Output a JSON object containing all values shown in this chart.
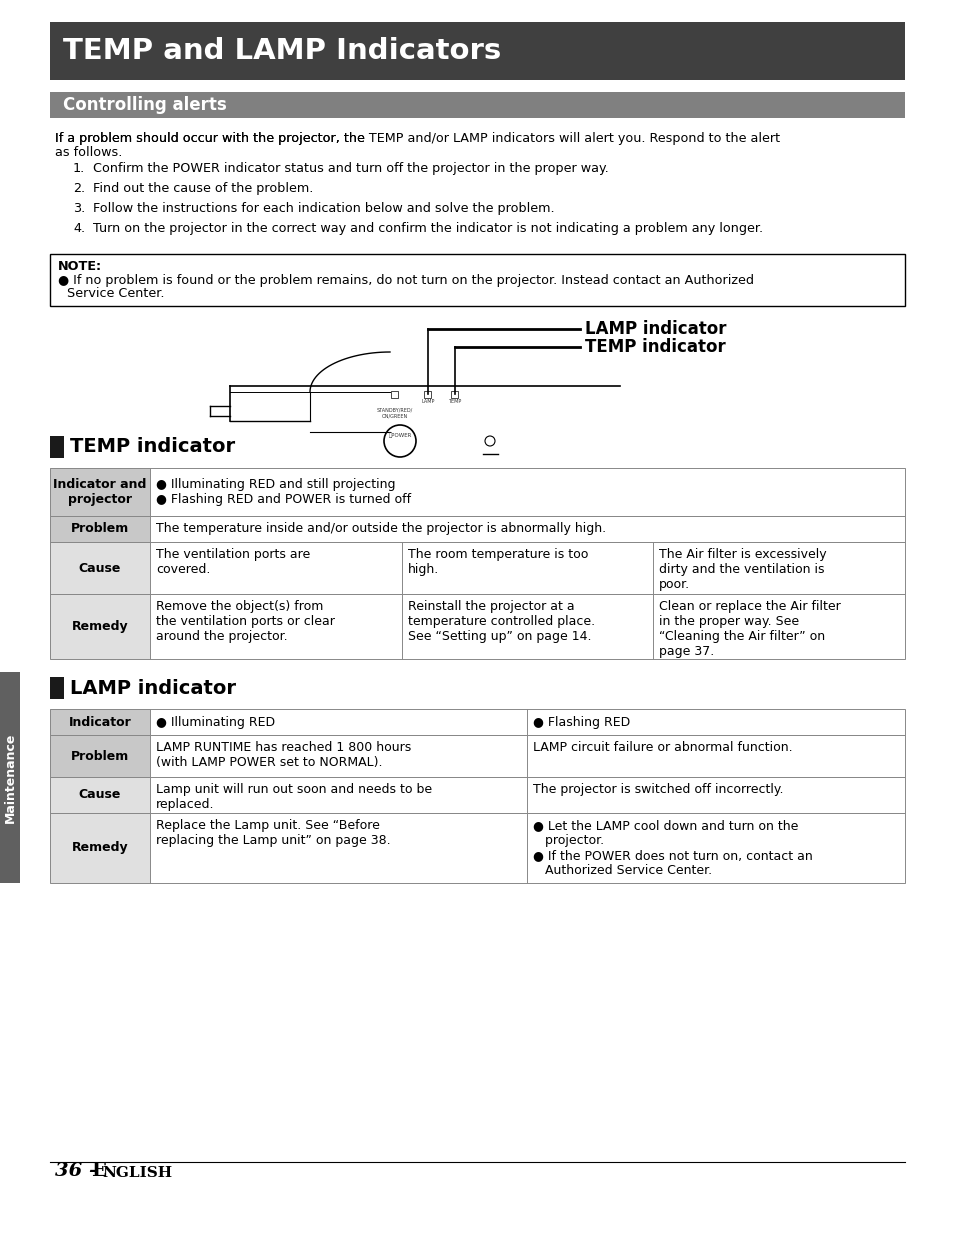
{
  "title": "TEMP and LAMP Indicators",
  "title_bg": "#404040",
  "title_color": "#ffffff",
  "section1_title": "Controlling alerts",
  "section1_bg": "#808080",
  "section1_color": "#ffffff",
  "list_items": [
    "Confirm the POWER indicator status and turn off the projector in the proper way.",
    "Find out the cause of the problem.",
    "Follow the instructions for each indication below and solve the problem.",
    "Turn on the projector in the correct way and confirm the indicator is not indicating a problem any longer."
  ],
  "note_title": "NOTE:",
  "note_line1": "If no problem is found or the problem remains, do not turn on the projector. Instead contact an Authorized",
  "note_line2": "Service Center.",
  "lamp_indicator_label": "LAMP indicator",
  "temp_indicator_label": "TEMP indicator",
  "temp_section_title": "TEMP indicator",
  "temp_table": {
    "row1_label": "Indicator and\nprojector",
    "row1_col1_l1": "● Illuminating RED and still projecting",
    "row1_col1_l2": "● Flashing RED and POWER is turned off",
    "row2_label": "Problem",
    "row2_col1": "The temperature inside and/or outside the projector is abnormally high.",
    "row3_label": "Cause",
    "row3_col1": "The ventilation ports are\ncovered.",
    "row3_col2": "The room temperature is too\nhigh.",
    "row3_col3": "The Air filter is excessively\ndirty and the ventilation is\npoor.",
    "row4_label": "Remedy",
    "row4_col1": "Remove the object(s) from\nthe ventilation ports or clear\naround the projector.",
    "row4_col2": "Reinstall the projector at a\ntemperature controlled place.\nSee “Setting up” on page 14.",
    "row4_col3": "Clean or replace the Air filter\nin the proper way. See\n“Cleaning the Air filter” on\npage 37."
  },
  "lamp_section_title": "LAMP indicator",
  "lamp_table": {
    "row1_label": "Indicator",
    "row1_col1": "● Illuminating RED",
    "row1_col2": "● Flashing RED",
    "row2_label": "Problem",
    "row2_col1": "LAMP RUNTIME has reached 1 800 hours\n(with LAMP POWER set to NORMAL).",
    "row2_col2": "LAMP circuit failure or abnormal function.",
    "row3_label": "Cause",
    "row3_col1": "Lamp unit will run out soon and needs to be\nreplaced.",
    "row3_col2": "The projector is switched off incorrectly.",
    "row4_label": "Remedy",
    "row4_col1": "Replace the Lamp unit. See “Before\nreplacing the Lamp unit” on page 38.",
    "row4_col2": "● Let the LAMP cool down and turn on the\n   projector.\n● If the POWER does not turn on, contact an\n   Authorized Service Center."
  },
  "footer_36": "36 - ",
  "footer_E": "E",
  "footer_nglish": "NGLISH",
  "bg_color": "#ffffff",
  "text_color": "#000000",
  "table_header_bg": "#c8c8c8",
  "table_row_bg": "#e0e0e0",
  "sidebar_color": "#606060",
  "sidebar_text": "Maintenance"
}
